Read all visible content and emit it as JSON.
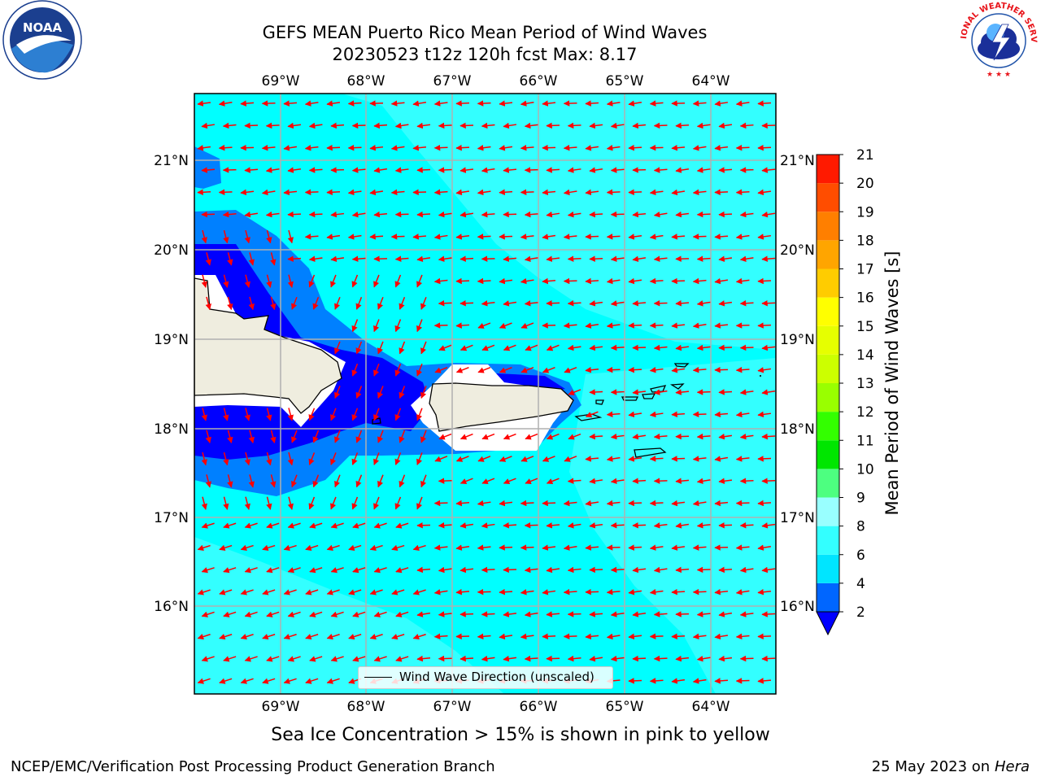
{
  "header": {
    "title_line1": "GEFS MEAN Puerto Rico Mean Period of Wind Waves",
    "title_line2": "20230523 t12z 120h fcst   Max: 8.17"
  },
  "logos": {
    "left": "noaa-logo",
    "right": "nws-logo",
    "noaa_text": "NOAA",
    "nws_text": "NATIONAL WEATHER SERVICE"
  },
  "map": {
    "lon_labels": [
      "69°W",
      "68°W",
      "67°W",
      "66°W",
      "65°W",
      "64°W"
    ],
    "lat_labels": [
      "21°N",
      "20°N",
      "19°N",
      "18°N",
      "17°N",
      "16°N"
    ],
    "land_color": "#efeddf",
    "arrow_color": "#ff0000",
    "legend_label": "Wind Wave Direction (unscaled)"
  },
  "colorbar": {
    "title": "Mean Period of Wind Waves [s]",
    "levels": [
      "2",
      "4",
      "6",
      "8",
      "9",
      "10",
      "11",
      "12",
      "13",
      "14",
      "15",
      "16",
      "17",
      "18",
      "19",
      "20",
      "21"
    ],
    "colors": [
      "#0066ff",
      "#00e5ff",
      "#33ffff",
      "#99ffff",
      "#4dff80",
      "#00e600",
      "#33ff00",
      "#99ff00",
      "#ccff00",
      "#e6ff00",
      "#ffff00",
      "#ffcc00",
      "#ffa500",
      "#ff7f00",
      "#ff4d00",
      "#ff1a00"
    ],
    "under_color": "#0000ff"
  },
  "notes": {
    "ice": "Sea Ice Concentration > 15% is shown in pink to yellow"
  },
  "footer": {
    "left": "NCEP/EMC/Verification Post Processing Product Generation Branch",
    "right_date": "25 May 2023 on",
    "right_host": "Hera"
  }
}
